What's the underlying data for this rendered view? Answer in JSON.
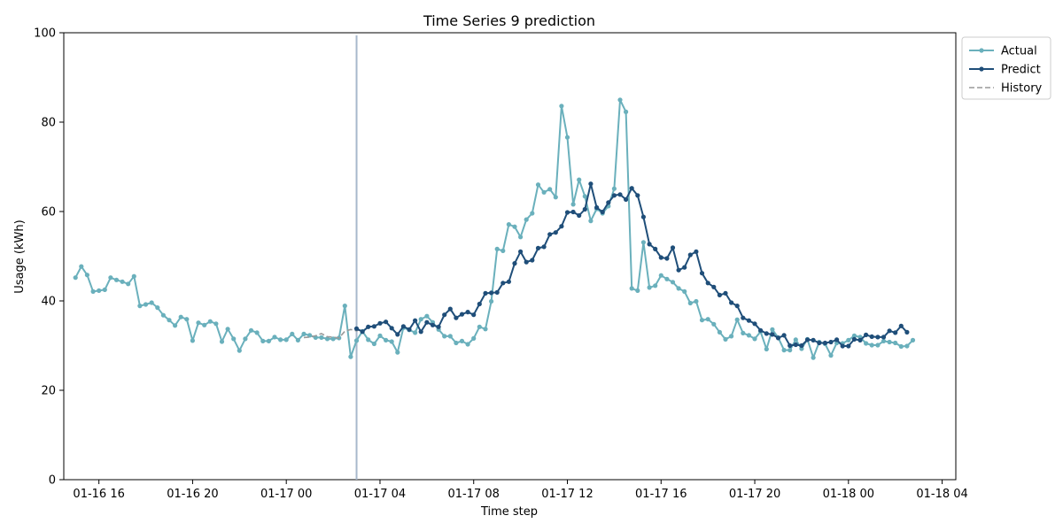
{
  "chart_data": {
    "type": "line",
    "title": "Time Series 9 prediction",
    "xlabel": "Time step",
    "ylabel": "Usage (kWh)",
    "ylim": [
      0,
      100
    ],
    "yticks": [
      0,
      20,
      40,
      60,
      80,
      100
    ],
    "x_unit": "15-minute steps, 2024-01-16 15:00 to 2024-01-18 03:00",
    "xlim": [
      "01-16 14:30",
      "01-18 04:35"
    ],
    "xticks": [
      {
        "value": "01-16 16:00",
        "label": "01-16 16"
      },
      {
        "value": "01-16 20:00",
        "label": "01-16 20"
      },
      {
        "value": "01-17 00:00",
        "label": "01-17 00"
      },
      {
        "value": "01-17 04:00",
        "label": "01-17 04"
      },
      {
        "value": "01-17 08:00",
        "label": "01-17 08"
      },
      {
        "value": "01-17 12:00",
        "label": "01-17 12"
      },
      {
        "value": "01-17 16:00",
        "label": "01-17 16"
      },
      {
        "value": "01-17 20:00",
        "label": "01-17 20"
      },
      {
        "value": "01-18 00:00",
        "label": "01-18 00"
      },
      {
        "value": "01-18 04:00",
        "label": "01-18 04"
      }
    ],
    "legend_position": "outside top-right",
    "split_marker": "01-17 03:00",
    "series": [
      {
        "name": "Actual",
        "color": "#6ab0bc",
        "style": "solid-with-dots",
        "start": "01-16 15:00",
        "values": [
          45.2,
          47.7,
          45.8,
          42.1,
          42.3,
          42.5,
          45.2,
          44.7,
          44.3,
          43.8,
          45.5,
          38.9,
          39.2,
          39.6,
          38.5,
          36.8,
          35.7,
          34.5,
          36.4,
          35.9,
          31.1,
          35.1,
          34.6,
          35.4,
          34.9,
          30.9,
          33.7,
          31.5,
          28.9,
          31.5,
          33.4,
          32.9,
          31.0,
          31.0,
          31.9,
          31.3,
          31.3,
          32.6,
          31.2,
          32.6,
          32.3,
          31.8,
          31.8,
          31.5,
          31.5,
          31.7,
          38.9,
          27.5,
          31.1,
          33.2,
          31.3,
          30.4,
          32.2,
          31.2,
          30.9,
          28.5,
          34.0,
          33.5,
          32.9,
          35.9,
          36.6,
          35.2,
          33.6,
          32.1,
          32.1,
          30.6,
          31.0,
          30.3,
          31.6,
          34.2,
          33.7,
          39.9,
          51.6,
          51.2,
          57.1,
          56.6,
          54.3,
          58.2,
          59.6,
          66.0,
          64.3,
          65.0,
          63.2,
          83.6,
          76.6,
          61.6,
          67.1,
          63.4,
          57.9,
          60.6,
          59.6,
          61.2,
          65.1,
          85.0,
          82.3,
          42.8,
          42.3,
          53.1,
          43.0,
          43.4,
          45.7,
          44.9,
          44.2,
          42.8,
          42.1,
          39.5,
          39.9,
          35.7,
          35.9,
          34.8,
          33.0,
          31.4,
          32.1,
          35.8,
          32.8,
          32.3,
          31.5,
          33.1,
          29.2,
          33.6,
          31.8,
          29.0,
          29.0,
          31.3,
          29.3,
          31.4,
          27.3,
          30.8,
          30.4,
          27.8,
          30.6,
          30.5,
          31.2,
          32.2,
          31.9,
          30.5,
          30.1,
          30.1,
          31.0,
          30.8,
          30.6,
          29.8,
          29.9,
          31.2
        ]
      },
      {
        "name": "Predict",
        "color": "#1f4e79",
        "style": "solid-with-dots",
        "start": "01-17 03:00",
        "values": [
          33.8,
          33.1,
          34.2,
          34.3,
          35.0,
          35.3,
          33.9,
          32.5,
          34.3,
          33.6,
          35.6,
          33.1,
          35.2,
          34.6,
          34.2,
          36.9,
          38.2,
          36.2,
          37.0,
          37.5,
          36.9,
          39.3,
          41.7,
          41.8,
          41.9,
          44.0,
          44.3,
          48.4,
          51.0,
          48.7,
          49.1,
          51.8,
          52.1,
          54.9,
          55.3,
          56.7,
          59.8,
          59.9,
          59.1,
          60.5,
          66.2,
          60.9,
          59.9,
          62.0,
          63.6,
          63.8,
          62.7,
          65.2,
          63.6,
          58.8,
          52.7,
          51.6,
          49.7,
          49.5,
          51.9,
          46.9,
          47.5,
          50.3,
          51.0,
          46.2,
          44.0,
          43.1,
          41.3,
          41.7,
          39.6,
          38.9,
          36.2,
          35.6,
          34.9,
          33.4,
          32.7,
          32.5,
          31.7,
          32.3,
          30.0,
          30.2,
          30.0,
          31.3,
          31.2,
          30.6,
          30.6,
          30.8,
          31.3,
          29.9,
          29.9,
          31.4,
          31.2,
          32.4,
          32.0,
          31.9,
          31.9,
          33.3,
          32.9,
          34.4,
          33.0
        ]
      },
      {
        "name": "History",
        "color": "#999999",
        "style": "dashed",
        "start": "01-17 00:45",
        "values": [
          31.8,
          31.9,
          32.2,
          32.7,
          32.0,
          31.9,
          31.7,
          33.2,
          33.6,
          33.3,
          33.7
        ]
      }
    ]
  }
}
